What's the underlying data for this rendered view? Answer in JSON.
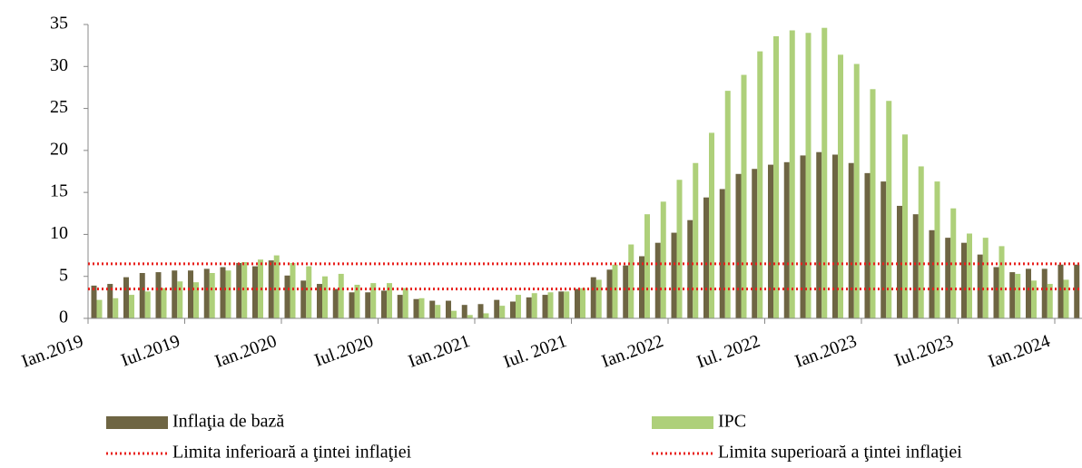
{
  "chart_data": {
    "type": "bar",
    "categories": [
      "Ian.2019",
      null,
      null,
      null,
      null,
      null,
      "Iul.2019",
      null,
      null,
      null,
      null,
      null,
      "Ian.2020",
      null,
      null,
      null,
      null,
      null,
      "Iul.2020",
      null,
      null,
      null,
      null,
      null,
      "Ian.2021",
      null,
      null,
      null,
      null,
      null,
      "Iul. 2021",
      null,
      null,
      null,
      null,
      null,
      "Ian.2022",
      null,
      null,
      null,
      null,
      null,
      "Iul. 2022",
      null,
      null,
      null,
      null,
      null,
      "Ian.2023",
      null,
      null,
      null,
      null,
      null,
      "Iul.2023",
      null,
      null,
      null,
      null,
      null,
      "Ian.2024",
      null
    ],
    "series": [
      {
        "name": "Inflaţia de bază",
        "color": "#6e6543",
        "values": [
          3.9,
          4.1,
          4.9,
          5.4,
          5.5,
          5.7,
          5.7,
          5.9,
          6.1,
          6.6,
          6.2,
          6.9,
          5.1,
          4.5,
          4.1,
          3.5,
          3.1,
          3.1,
          3.3,
          2.8,
          2.3,
          2.1,
          2.1,
          1.6,
          1.7,
          2.2,
          2.0,
          2.5,
          2.8,
          3.2,
          3.5,
          4.9,
          5.8,
          6.3,
          7.4,
          9.0,
          10.2,
          11.7,
          14.4,
          15.4,
          17.2,
          17.8,
          18.3,
          18.6,
          19.4,
          19.8,
          19.5,
          18.5,
          17.3,
          16.3,
          13.4,
          12.4,
          10.5,
          9.6,
          9.0,
          7.6,
          6.1,
          5.5,
          5.9,
          5.9,
          6.4,
          6.4
        ]
      },
      {
        "name": "IPC",
        "color": "#aed07a",
        "values": [
          2.2,
          2.4,
          2.8,
          3.2,
          3.6,
          4.4,
          4.3,
          5.4,
          5.7,
          6.7,
          7.0,
          7.5,
          6.6,
          6.2,
          5.0,
          5.3,
          4.0,
          4.2,
          4.2,
          3.6,
          2.4,
          1.6,
          0.9,
          0.4,
          0.6,
          1.5,
          2.8,
          3.0,
          3.1,
          3.2,
          3.6,
          4.6,
          6.4,
          8.8,
          12.4,
          13.9,
          16.5,
          18.5,
          22.1,
          27.1,
          29.0,
          31.8,
          33.6,
          34.3,
          34.0,
          34.6,
          31.4,
          30.3,
          27.3,
          25.9,
          21.9,
          18.1,
          16.3,
          13.1,
          10.1,
          9.6,
          8.6,
          5.3,
          4.5,
          4.1,
          4.6,
          null
        ]
      }
    ],
    "reference_lines": [
      {
        "name": "Limita inferioară a ţintei inflaţiei",
        "value": 3.5,
        "color": "#e8201c"
      },
      {
        "name": "Limita superioară a ţintei inflaţiei",
        "value": 6.5,
        "color": "#e8201c"
      }
    ],
    "ylim": [
      0,
      35
    ],
    "yticks": [
      0,
      5,
      10,
      15,
      20,
      25,
      30,
      35
    ]
  }
}
